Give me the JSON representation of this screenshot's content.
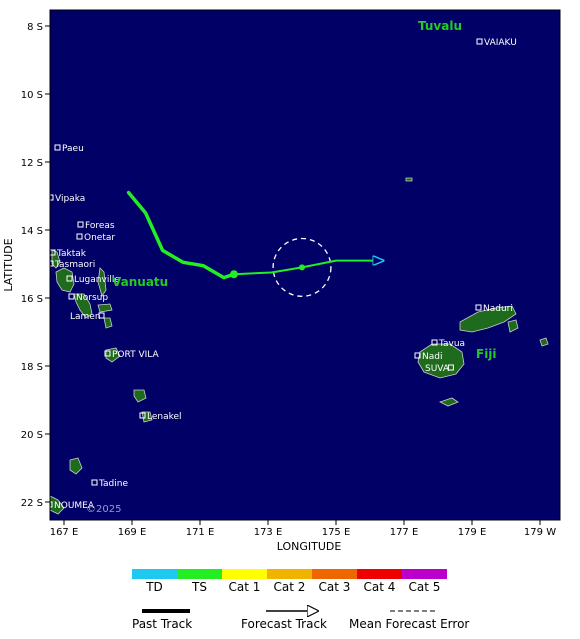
{
  "map": {
    "axis_x_label": "LONGITUDE",
    "axis_y_label": "LATITUDE",
    "lon_ticks": [
      "167 E",
      "169 E",
      "171 E",
      "173 E",
      "175 E",
      "177 E",
      "179 E",
      "179 W"
    ],
    "lat_ticks": [
      "8 S",
      "10 S",
      "12 S",
      "14 S",
      "16 S",
      "18 S",
      "20 S",
      "22 S"
    ],
    "ocean_color": "#000066",
    "land_color": "#1e6b1e",
    "watermark": "©2025",
    "countries": [
      {
        "name": "Tuvalu"
      },
      {
        "name": "Vanuatu"
      },
      {
        "name": "Fiji"
      }
    ],
    "places": [
      {
        "name": "VAIAKU"
      },
      {
        "name": "Paeu"
      },
      {
        "name": "Vipaka"
      },
      {
        "name": "Foreas"
      },
      {
        "name": "Onetar"
      },
      {
        "name": "Taktak"
      },
      {
        "name": "Tasmaori"
      },
      {
        "name": "Luganville"
      },
      {
        "name": "Norsup"
      },
      {
        "name": "Lamen"
      },
      {
        "name": "PORT VILA"
      },
      {
        "name": "Lenakel"
      },
      {
        "name": "Tadine"
      },
      {
        "name": "NOUMEA"
      },
      {
        "name": "Naduri"
      },
      {
        "name": "Tavua"
      },
      {
        "name": "Nadi"
      },
      {
        "name": "SUVA"
      }
    ],
    "past_track": [
      {
        "lon": 168.9,
        "lat": 12.9
      },
      {
        "lon": 169.4,
        "lat": 13.5
      },
      {
        "lon": 169.9,
        "lat": 14.6
      },
      {
        "lon": 170.5,
        "lat": 14.95
      },
      {
        "lon": 171.1,
        "lat": 15.05
      },
      {
        "lon": 171.7,
        "lat": 15.4
      },
      {
        "lon": 172.0,
        "lat": 15.3
      }
    ],
    "forecast_track": [
      {
        "lon": 172.0,
        "lat": 15.3
      },
      {
        "lon": 173.1,
        "lat": 15.25
      },
      {
        "lon": 174.0,
        "lat": 15.1
      },
      {
        "lon": 175.0,
        "lat": 14.9
      },
      {
        "lon": 176.4,
        "lat": 14.9
      }
    ],
    "error_circle": {
      "lon": 174.0,
      "lat": 15.1,
      "radius_deg": 0.85
    }
  },
  "legend": {
    "categories": [
      {
        "label": "TD",
        "color": "#1ec8f0"
      },
      {
        "label": "TS",
        "color": "#22ee22"
      },
      {
        "label": "Cat 1",
        "color": "#ffff00"
      },
      {
        "label": "Cat 2",
        "color": "#f0b400"
      },
      {
        "label": "Cat 3",
        "color": "#ee6600"
      },
      {
        "label": "Cat 4",
        "color": "#ee0000"
      },
      {
        "label": "Cat 5",
        "color": "#bb00cc"
      }
    ],
    "past_track_label": "Past Track",
    "forecast_track_label": "Forecast Track",
    "error_label": "Mean Forecast Error"
  }
}
